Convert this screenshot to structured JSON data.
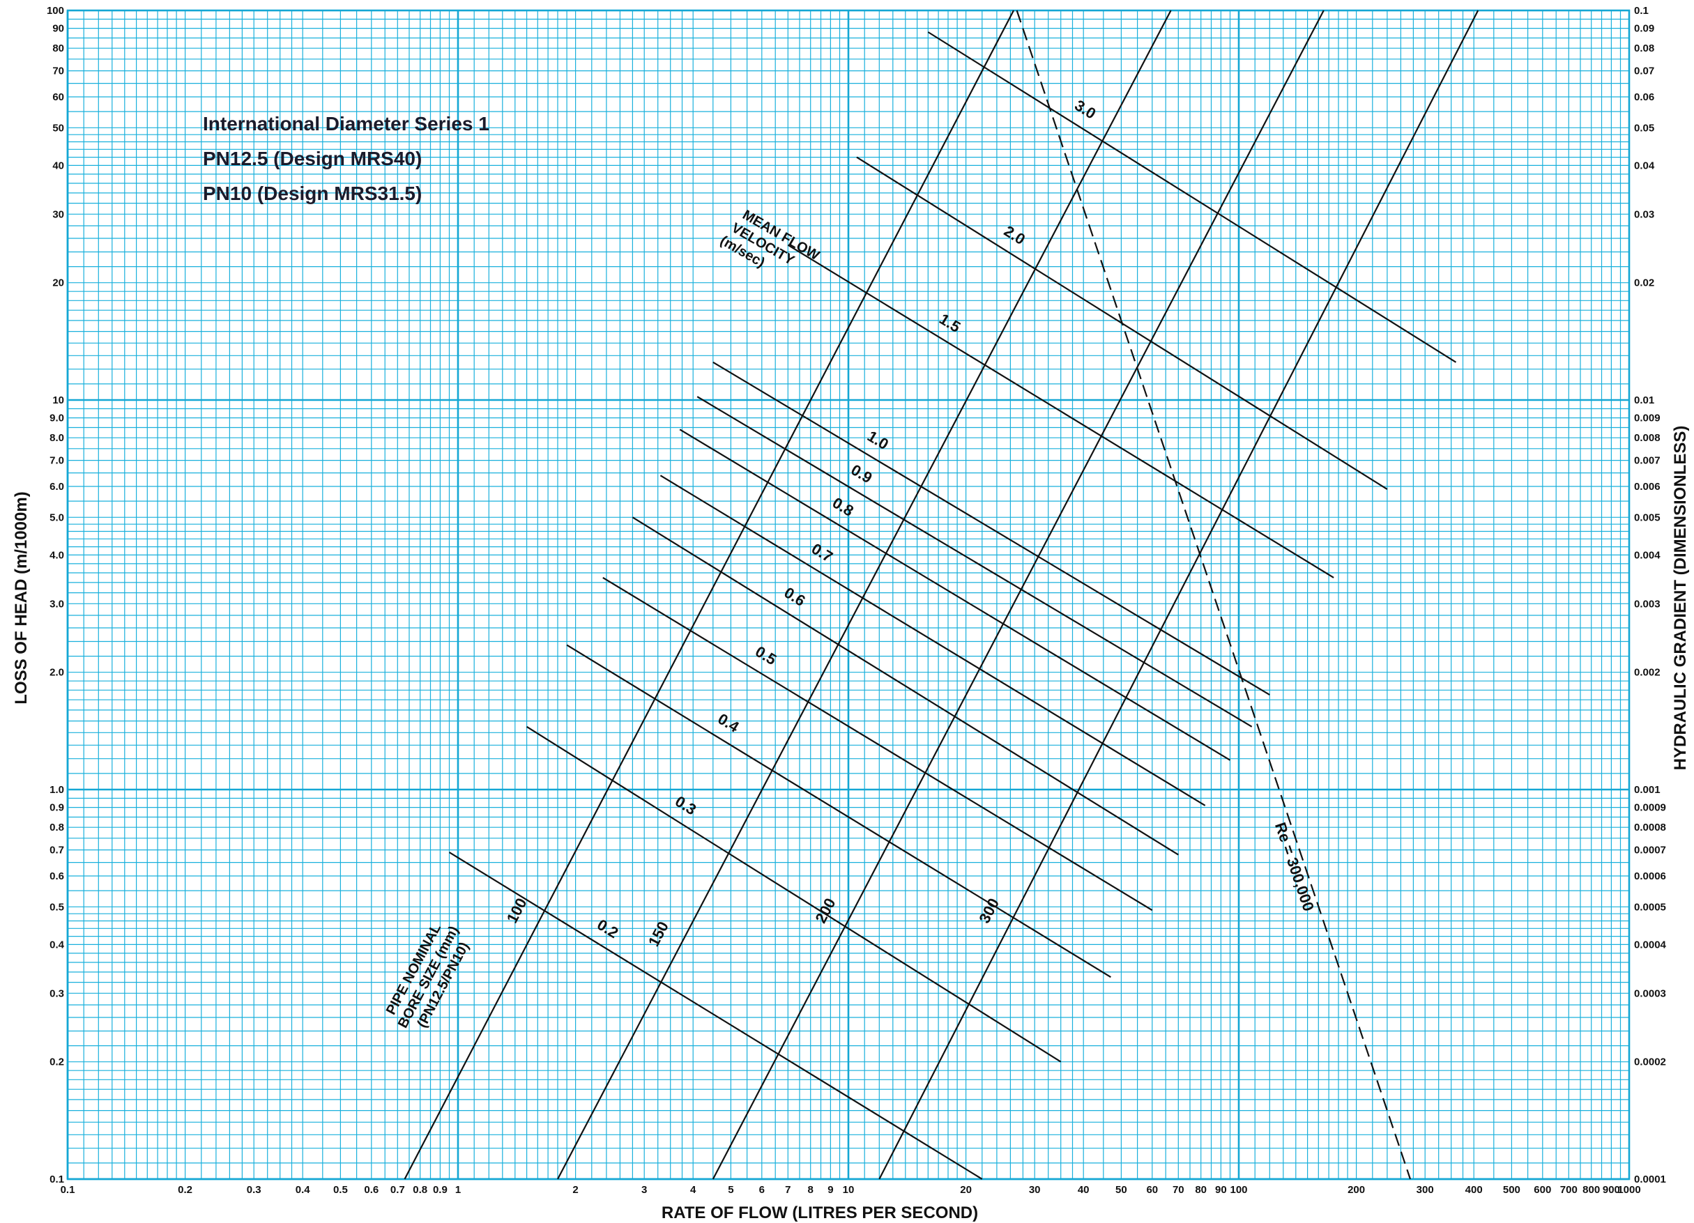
{
  "chart_data": {
    "type": "line",
    "title_lines": [
      "International Diameter Series 1",
      "PN12.5 (Design MRS40)",
      "PN10 (Design MRS31.5)"
    ],
    "xlabel": "RATE OF FLOW (LITRES PER SECOND)",
    "ylabel": "LOSS OF HEAD (m/1000m)",
    "y2label": "HYDRAULIC GRADIENT (DIMENSIONLESS)",
    "x_scale": "log",
    "y_scale": "log",
    "xlim": [
      0.1,
      1000
    ],
    "ylim": [
      0.1,
      100
    ],
    "grid": true,
    "x_ticks": [
      {
        "v": 0.1,
        "label": "0.1"
      },
      {
        "v": 0.2,
        "label": "0.2"
      },
      {
        "v": 0.3,
        "label": "0.3"
      },
      {
        "v": 0.4,
        "label": "0.4"
      },
      {
        "v": 0.5,
        "label": "0.5"
      },
      {
        "v": 0.6,
        "label": "0.6"
      },
      {
        "v": 0.7,
        "label": "0.7"
      },
      {
        "v": 0.8,
        "label": "0.8"
      },
      {
        "v": 0.9,
        "label": "0.9"
      },
      {
        "v": 1,
        "label": "1"
      },
      {
        "v": 2,
        "label": "2"
      },
      {
        "v": 3,
        "label": "3"
      },
      {
        "v": 4,
        "label": "4"
      },
      {
        "v": 5,
        "label": "5"
      },
      {
        "v": 6,
        "label": "6"
      },
      {
        "v": 7,
        "label": "7"
      },
      {
        "v": 8,
        "label": "8"
      },
      {
        "v": 9,
        "label": "9"
      },
      {
        "v": 10,
        "label": "10"
      },
      {
        "v": 20,
        "label": "20"
      },
      {
        "v": 30,
        "label": "30"
      },
      {
        "v": 40,
        "label": "40"
      },
      {
        "v": 50,
        "label": "50"
      },
      {
        "v": 60,
        "label": "60"
      },
      {
        "v": 70,
        "label": "70"
      },
      {
        "v": 80,
        "label": "80"
      },
      {
        "v": 90,
        "label": "90"
      },
      {
        "v": 100,
        "label": "100"
      },
      {
        "v": 200,
        "label": "200"
      },
      {
        "v": 300,
        "label": "300"
      },
      {
        "v": 400,
        "label": "400"
      },
      {
        "v": 500,
        "label": "500"
      },
      {
        "v": 600,
        "label": "600"
      },
      {
        "v": 700,
        "label": "700"
      },
      {
        "v": 800,
        "label": "800"
      },
      {
        "v": 900,
        "label": "900"
      },
      {
        "v": 1000,
        "label": "1000"
      }
    ],
    "y_ticks": [
      {
        "v": 0.1,
        "label": "0.1"
      },
      {
        "v": 0.2,
        "label": "0.2"
      },
      {
        "v": 0.3,
        "label": "0.3"
      },
      {
        "v": 0.4,
        "label": "0.4"
      },
      {
        "v": 0.5,
        "label": "0.5"
      },
      {
        "v": 0.6,
        "label": "0.6"
      },
      {
        "v": 0.7,
        "label": "0.7"
      },
      {
        "v": 0.8,
        "label": "0.8"
      },
      {
        "v": 0.9,
        "label": "0.9"
      },
      {
        "v": 1,
        "label": "1.0"
      },
      {
        "v": 2,
        "label": "2.0"
      },
      {
        "v": 3,
        "label": "3.0"
      },
      {
        "v": 4,
        "label": "4.0"
      },
      {
        "v": 5,
        "label": "5.0"
      },
      {
        "v": 6,
        "label": "6.0"
      },
      {
        "v": 7,
        "label": "7.0"
      },
      {
        "v": 8,
        "label": "8.0"
      },
      {
        "v": 9,
        "label": "9.0"
      },
      {
        "v": 10,
        "label": "10"
      },
      {
        "v": 20,
        "label": "20"
      },
      {
        "v": 30,
        "label": "30"
      },
      {
        "v": 40,
        "label": "40"
      },
      {
        "v": 50,
        "label": "50"
      },
      {
        "v": 60,
        "label": "60"
      },
      {
        "v": 70,
        "label": "70"
      },
      {
        "v": 80,
        "label": "80"
      },
      {
        "v": 90,
        "label": "90"
      },
      {
        "v": 100,
        "label": "100"
      }
    ],
    "y2_ticks": [
      {
        "v": 0.1,
        "label": "0.0001"
      },
      {
        "v": 0.2,
        "label": "0.0002"
      },
      {
        "v": 0.3,
        "label": "0.0003"
      },
      {
        "v": 0.4,
        "label": "0.0004"
      },
      {
        "v": 0.5,
        "label": "0.0005"
      },
      {
        "v": 0.6,
        "label": "0.0006"
      },
      {
        "v": 0.7,
        "label": "0.0007"
      },
      {
        "v": 0.8,
        "label": "0.0008"
      },
      {
        "v": 0.9,
        "label": "0.0009"
      },
      {
        "v": 1,
        "label": "0.001"
      },
      {
        "v": 2,
        "label": "0.002"
      },
      {
        "v": 3,
        "label": "0.003"
      },
      {
        "v": 4,
        "label": "0.004"
      },
      {
        "v": 5,
        "label": "0.005"
      },
      {
        "v": 6,
        "label": "0.006"
      },
      {
        "v": 7,
        "label": "0.007"
      },
      {
        "v": 8,
        "label": "0.008"
      },
      {
        "v": 9,
        "label": "0.009"
      },
      {
        "v": 10,
        "label": "0.01"
      },
      {
        "v": 20,
        "label": "0.02"
      },
      {
        "v": 30,
        "label": "0.03"
      },
      {
        "v": 40,
        "label": "0.04"
      },
      {
        "v": 50,
        "label": "0.05"
      },
      {
        "v": 60,
        "label": "0.06"
      },
      {
        "v": 70,
        "label": "0.07"
      },
      {
        "v": 80,
        "label": "0.08"
      },
      {
        "v": 90,
        "label": "0.09"
      },
      {
        "v": 100,
        "label": "0.1"
      }
    ],
    "diameter_group_label": [
      "PIPE NOMINAL",
      "BORE SIZE (mm)",
      "(PN12.5/PN10)"
    ],
    "diameter_series": [
      {
        "name": "100",
        "x": [
          0.73,
          26.5
        ],
        "y": [
          0.1,
          100
        ]
      },
      {
        "name": "150",
        "x": [
          1.8,
          67
        ],
        "y": [
          0.1,
          100
        ]
      },
      {
        "name": "200",
        "x": [
          4.5,
          165
        ],
        "y": [
          0.1,
          100
        ]
      },
      {
        "name": "300",
        "x": [
          12,
          410
        ],
        "y": [
          0.1,
          100
        ]
      }
    ],
    "velocity_group_label": [
      "MEAN FLOW",
      "VELOCITY",
      "(m/sec)"
    ],
    "velocity_series": [
      {
        "name": "0.2",
        "x": [
          0.95,
          22
        ],
        "y": [
          0.69,
          0.1
        ]
      },
      {
        "name": "0.3",
        "x": [
          1.5,
          35
        ],
        "y": [
          1.45,
          0.2
        ]
      },
      {
        "name": "0.4",
        "x": [
          1.9,
          47
        ],
        "y": [
          2.35,
          0.33
        ]
      },
      {
        "name": "0.5",
        "x": [
          2.35,
          60
        ],
        "y": [
          3.5,
          0.49
        ]
      },
      {
        "name": "0.6",
        "x": [
          2.8,
          70
        ],
        "y": [
          5.0,
          0.68
        ]
      },
      {
        "name": "0.7",
        "x": [
          3.3,
          82
        ],
        "y": [
          6.4,
          0.91
        ]
      },
      {
        "name": "0.8",
        "x": [
          3.7,
          95
        ],
        "y": [
          8.4,
          1.19
        ]
      },
      {
        "name": "0.9",
        "x": [
          4.1,
          108
        ],
        "y": [
          10.2,
          1.45
        ]
      },
      {
        "name": "1.0",
        "x": [
          4.5,
          120
        ],
        "y": [
          12.5,
          1.75
        ]
      },
      {
        "name": "1.5",
        "x": [
          7,
          175
        ],
        "y": [
          25,
          3.5
        ]
      },
      {
        "name": "2.0",
        "x": [
          10.5,
          240
        ],
        "y": [
          42,
          5.9
        ]
      },
      {
        "name": "3.0",
        "x": [
          16,
          360
        ],
        "y": [
          88,
          12.5
        ]
      }
    ],
    "reynolds_series": {
      "name": "Re = 300,000",
      "x": [
        27,
        275
      ],
      "y": [
        100,
        0.1
      ]
    }
  }
}
